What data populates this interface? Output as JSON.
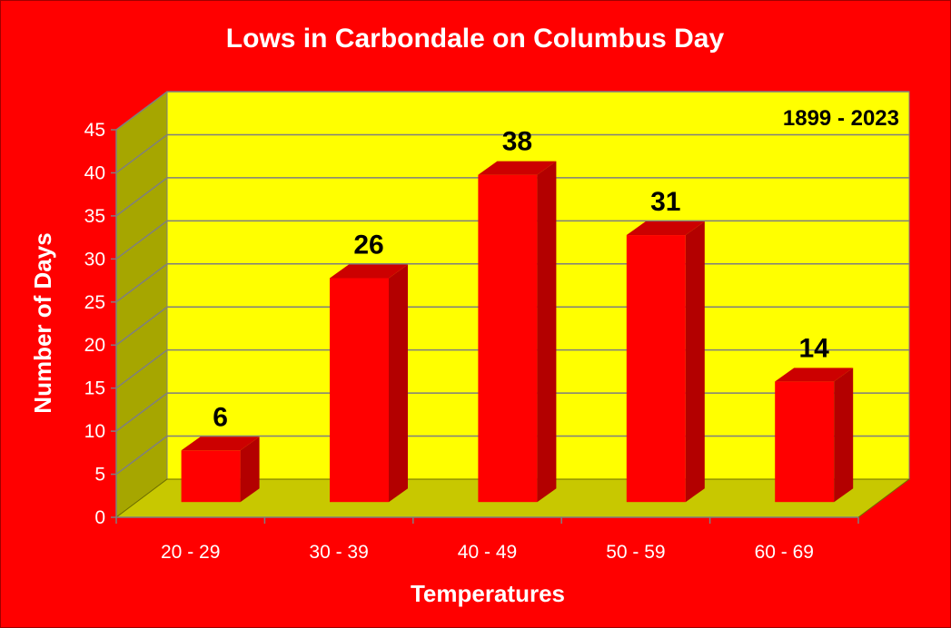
{
  "chart_data": {
    "type": "bar",
    "title": "Lows in Carbondale on Columbus Day",
    "annotation": "1899 - 2023",
    "xlabel": "Temperatures",
    "ylabel": "Number of Days",
    "categories": [
      "20 - 29",
      "30 - 39",
      "40 - 49",
      "50 - 59",
      "60 - 69"
    ],
    "values": [
      6,
      26,
      38,
      31,
      14
    ],
    "ylim": [
      0,
      45
    ],
    "yticks": [
      0,
      5,
      10,
      15,
      20,
      25,
      30,
      35,
      40,
      45
    ],
    "grid": true,
    "legend": "none"
  },
  "colors": {
    "background": "#ff0000",
    "plot_back_wall": "#ffff00",
    "plot_side_wall": "#a6a600",
    "plot_floor": "#c8c800",
    "bar_front": "#ff0000",
    "bar_side": "#b30000",
    "bar_top": "#cc0000",
    "gridline": "#7f7f7f",
    "text_light": "#ffffff",
    "text_dark": "#000000"
  }
}
